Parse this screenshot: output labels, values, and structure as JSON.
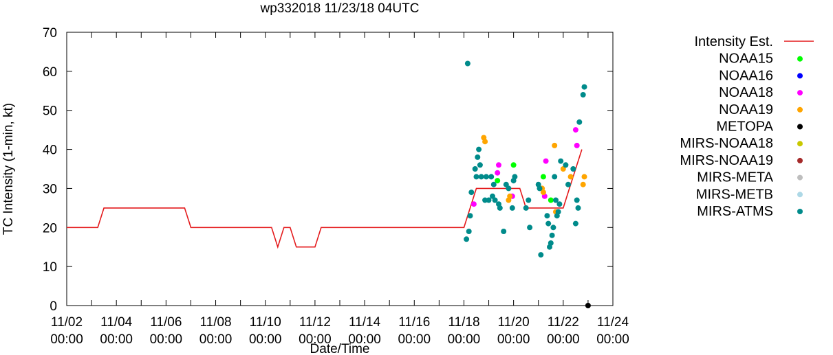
{
  "chart_data": {
    "type": "scatter",
    "title": "wp332018 11/23/18 04UTC",
    "xlabel": "Date/Time",
    "ylabel": "TC Intensity (1-min, kt)",
    "xlim": [
      0,
      22
    ],
    "ylim": [
      0,
      70
    ],
    "y_ticks": [
      0,
      10,
      20,
      30,
      40,
      50,
      60,
      70
    ],
    "x_ticks": [
      {
        "day": 0,
        "date": "11/02",
        "time": "00:00"
      },
      {
        "day": 2,
        "date": "11/04",
        "time": "00:00"
      },
      {
        "day": 4,
        "date": "11/06",
        "time": "00:00"
      },
      {
        "day": 6,
        "date": "11/08",
        "time": "00:00"
      },
      {
        "day": 8,
        "date": "11/10",
        "time": "00:00"
      },
      {
        "day": 10,
        "date": "11/12",
        "time": "00:00"
      },
      {
        "day": 12,
        "date": "11/14",
        "time": "00:00"
      },
      {
        "day": 14,
        "date": "11/16",
        "time": "00:00"
      },
      {
        "day": 16,
        "date": "11/18",
        "time": "00:00"
      },
      {
        "day": 18,
        "date": "11/20",
        "time": "00:00"
      },
      {
        "day": 20,
        "date": "11/22",
        "time": "00:00"
      },
      {
        "day": 22,
        "date": "11/24",
        "time": "00:00"
      }
    ],
    "legend_position": "right",
    "line": {
      "name": "Intensity Est.",
      "color": "#e41a1c",
      "x": [
        0,
        1.25,
        1.5,
        4.75,
        5.0,
        8.25,
        8.5,
        8.75,
        9.0,
        9.25,
        10.0,
        10.25,
        16.0,
        16.5,
        18.25,
        18.5,
        20.0,
        20.25,
        20.75
      ],
      "y": [
        20,
        20,
        25,
        25,
        20,
        20,
        15,
        20,
        20,
        15,
        15,
        20,
        20,
        30,
        30,
        25,
        25,
        30,
        40
      ]
    },
    "series": [
      {
        "name": "NOAA15",
        "color": "#00ff00",
        "x": [
          17.35,
          18.0,
          19.2,
          19.5
        ],
        "y": [
          32,
          36,
          33,
          27
        ]
      },
      {
        "name": "NOAA16",
        "color": "#0000ff",
        "x": [],
        "y": []
      },
      {
        "name": "NOAA18",
        "color": "#ff00ff",
        "x": [
          16.4,
          17.35,
          17.4,
          17.95,
          19.3,
          19.25,
          20.5,
          20.55
        ],
        "y": [
          26,
          34,
          36,
          28,
          37,
          28,
          45,
          41
        ]
      },
      {
        "name": "NOAA19",
        "color": "#ffa500",
        "x": [
          16.8,
          16.85,
          17.8,
          17.85,
          19.15,
          19.2,
          19.65,
          19.7,
          20.0,
          20.3,
          20.8,
          20.85
        ],
        "y": [
          43,
          42,
          27,
          28,
          30,
          29,
          41,
          24,
          35,
          33,
          31,
          33
        ]
      },
      {
        "name": "METOPA",
        "color": "#000000",
        "x": [
          21.0
        ],
        "y": [
          0
        ]
      },
      {
        "name": "MIRS-NOAA18",
        "color": "#c8c800",
        "x": [],
        "y": []
      },
      {
        "name": "MIRS-NOAA19",
        "color": "#a52a2a",
        "x": [],
        "y": []
      },
      {
        "name": "MIRS-META",
        "color": "#bebebe",
        "x": [],
        "y": []
      },
      {
        "name": "MIRS-METB",
        "color": "#add8e6",
        "x": [],
        "y": []
      },
      {
        "name": "MIRS-ATMS",
        "color": "#008b8b",
        "x": [
          16.1,
          16.2,
          16.25,
          16.3,
          16.45,
          16.5,
          16.55,
          16.6,
          16.65,
          16.7,
          16.85,
          16.9,
          17.0,
          17.1,
          17.2,
          17.4,
          17.45,
          17.6,
          17.7,
          17.8,
          17.95,
          18.0,
          18.05,
          18.6,
          18.65,
          19.0,
          19.05,
          19.1,
          19.35,
          19.4,
          19.45,
          19.5,
          19.55,
          19.6,
          19.75,
          19.8,
          19.85,
          19.9,
          20.1,
          20.2,
          20.5,
          20.55,
          20.6,
          20.65,
          20.8,
          20.85,
          18.5,
          16.15,
          17.15,
          17.25,
          19.7,
          20.4,
          19.65
        ],
        "y": [
          17,
          19,
          23,
          29,
          35,
          33,
          38,
          40,
          36,
          33,
          27,
          33,
          27,
          33,
          31,
          26,
          25,
          19,
          31,
          30,
          25,
          32,
          33,
          27,
          20,
          31,
          30,
          13,
          23,
          21,
          15,
          16,
          18,
          20,
          23,
          24,
          26,
          37,
          36,
          31,
          21,
          27,
          25,
          47,
          54,
          56,
          25,
          62,
          28,
          27,
          27,
          35,
          33
        ]
      }
    ]
  }
}
